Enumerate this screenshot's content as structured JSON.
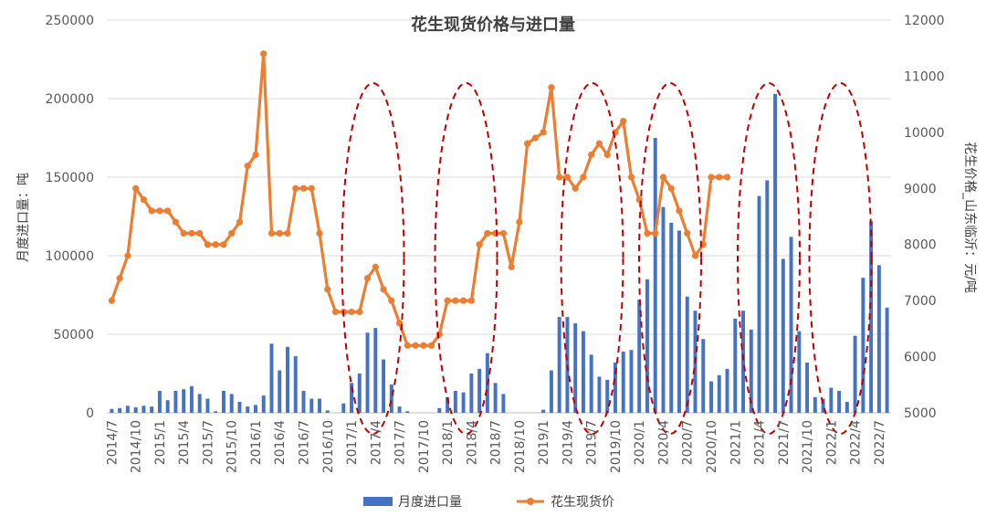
{
  "chart_data": {
    "type": "bar+line",
    "title": "花生现货价格与进口量",
    "ylabel_left": "月度进口量：吨",
    "ylabel_right": "花生价格_山东临沂：元/吨",
    "ylim_left": [
      0,
      250000
    ],
    "ylim_right": [
      5000,
      12000
    ],
    "left_ticks": [
      "0",
      "50000",
      "100000",
      "150000",
      "200000",
      "250000"
    ],
    "right_ticks": [
      "5000",
      "6000",
      "7000",
      "8000",
      "9000",
      "10000",
      "11000",
      "12000"
    ],
    "x_tick_labels": [
      "2014/7",
      "2014/10",
      "2015/1",
      "2015/4",
      "2015/7",
      "2015/10",
      "2016/1",
      "2016/4",
      "2016/7",
      "2016/10",
      "2017/1",
      "2017/4",
      "2017/7",
      "2017/10",
      "2018/1",
      "2018/4",
      "2018/7",
      "2018/10",
      "2019/1",
      "2019/4",
      "2019/7",
      "2019/10",
      "2020/1",
      "2020/4",
      "2020/7",
      "2020/10",
      "2021/1",
      "2021/4",
      "2021/7",
      "2021/10",
      "2022/1",
      "2022/4",
      "2022/7"
    ],
    "start_month": "2014/7",
    "legend": [
      "月度进口量",
      "花生现货价"
    ],
    "colors": {
      "bar": "#4472C4",
      "line": "#ED7D31",
      "ellipse": "#C00000",
      "grid": "#D9D9D9"
    },
    "grid": true,
    "legend_position": "bottom",
    "series": [
      {
        "name": "月度进口量",
        "type": "bar",
        "axis": "left",
        "values": [
          2500,
          3000,
          4500,
          3500,
          4500,
          4000,
          14000,
          8000,
          14000,
          15000,
          17000,
          12000,
          9000,
          1000,
          14000,
          12000,
          7000,
          4000,
          5000,
          11000,
          44000,
          27000,
          42000,
          36000,
          14000,
          9000,
          9000,
          1500,
          0,
          6000,
          19000,
          25000,
          51000,
          54000,
          34000,
          18000,
          4000,
          1000,
          0,
          0,
          0,
          3000,
          10000,
          14000,
          13000,
          25000,
          28000,
          38000,
          19000,
          12000,
          0,
          0,
          0,
          0,
          2000,
          27000,
          61000,
          61000,
          57000,
          52000,
          37000,
          23000,
          21000,
          32000,
          39000,
          40000,
          72000,
          85000,
          175000,
          131000,
          121000,
          116000,
          74000,
          65000,
          47000,
          20000,
          24000,
          28000,
          60000,
          65000,
          53000,
          138000,
          148000,
          203000,
          98000,
          112000,
          52000,
          32000,
          10000,
          9000,
          16000,
          14000,
          7000,
          49000,
          86000,
          122000,
          94000,
          67000
        ]
      },
      {
        "name": "花生现货价",
        "type": "line",
        "axis": "right",
        "values": [
          7000,
          7400,
          7800,
          9000,
          8800,
          8600,
          8600,
          8600,
          8400,
          8200,
          8200,
          8200,
          8000,
          8000,
          8000,
          8200,
          8400,
          9400,
          9600,
          11400,
          8200,
          8200,
          8200,
          9000,
          9000,
          9000,
          8200,
          7200,
          6800,
          6800,
          6800,
          6800,
          7400,
          7600,
          7200,
          7000,
          6600,
          6200,
          6200,
          6200,
          6200,
          6400,
          7000,
          7000,
          7000,
          7000,
          8000,
          8200,
          8200,
          8200,
          7600,
          8400,
          9800,
          9900,
          10000,
          10800,
          9200,
          9200,
          9000,
          9200,
          9600,
          9800,
          9600,
          10000,
          10200,
          9200,
          8800,
          8200,
          8200,
          9200,
          9000,
          8600,
          8200,
          7800,
          8000,
          9200,
          9200,
          9200
        ]
      }
    ],
    "annotations": [
      "dashed-ellipse",
      "dashed-ellipse",
      "dashed-ellipse",
      "dashed-ellipse",
      "dashed-ellipse",
      "dashed-ellipse"
    ]
  }
}
